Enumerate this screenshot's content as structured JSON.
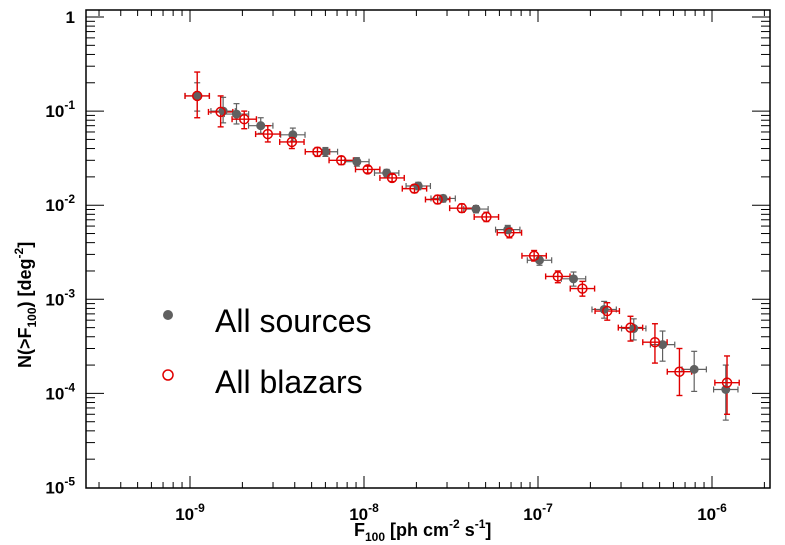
{
  "chart_data": {
    "type": "scatter",
    "title": "",
    "xlabel": {
      "base": "F",
      "sub": "100",
      "tail": " [ph cm",
      "sup1": "-2",
      "mid": " s",
      "sup2": "-1",
      "end": "]"
    },
    "ylabel": {
      "pre": "N(>F",
      "sub": "100",
      "mid": ") [deg",
      "sup": "-2",
      "end": "]"
    },
    "xscale": "log",
    "yscale": "log",
    "xlim": [
      2.5e-10,
      3e-06
    ],
    "ylim": [
      1e-05,
      1
    ],
    "x_ticks": [
      {
        "value": 1e-09,
        "base": "10",
        "exp": "-9"
      },
      {
        "value": 1e-08,
        "base": "10",
        "exp": "-8"
      },
      {
        "value": 1e-07,
        "base": "10",
        "exp": "-7"
      },
      {
        "value": 1e-06,
        "base": "10",
        "exp": "-6"
      }
    ],
    "y_ticks": [
      {
        "value": 1,
        "base": "1",
        "exp": ""
      },
      {
        "value": 0.1,
        "base": "10",
        "exp": "-1"
      },
      {
        "value": 0.01,
        "base": "10",
        "exp": "-2"
      },
      {
        "value": 0.001,
        "base": "10",
        "exp": "-3"
      },
      {
        "value": 0.0001,
        "base": "10",
        "exp": "-4"
      },
      {
        "value": 1e-05,
        "base": "10",
        "exp": "-5"
      }
    ],
    "grid": false,
    "legend_position": "left-center",
    "series": [
      {
        "name": "All sources",
        "marker": "filled-circle",
        "color": "#606060",
        "points": [
          [
            1.1e-09,
            0.145,
            0.2,
            0.1
          ],
          [
            1.55e-09,
            0.1,
            0.14,
            0.075
          ],
          [
            1.85e-09,
            0.093,
            0.12,
            0.073
          ],
          [
            2.55e-09,
            0.07,
            0.085,
            0.058
          ],
          [
            3.9e-09,
            0.056,
            0.066,
            0.048
          ],
          [
            6e-09,
            0.037,
            0.041,
            0.033
          ],
          [
            9.1e-09,
            0.029,
            0.032,
            0.026
          ],
          [
            1.35e-08,
            0.022,
            0.024,
            0.02
          ],
          [
            2.05e-08,
            0.016,
            0.0175,
            0.0146
          ],
          [
            2.85e-08,
            0.0118,
            0.0128,
            0.0108
          ],
          [
            4.4e-08,
            0.0091,
            0.0099,
            0.0083
          ],
          [
            6.7e-08,
            0.0055,
            0.0061,
            0.005
          ],
          [
            1.02e-07,
            0.0026,
            0.0029,
            0.0023
          ],
          [
            1.6e-07,
            0.00165,
            0.00195,
            0.00138
          ],
          [
            2.4e-07,
            0.00078,
            0.00095,
            0.00063
          ],
          [
            3.55e-07,
            0.00049,
            0.00062,
            0.00037
          ],
          [
            5.2e-07,
            0.00033,
            0.00046,
            0.00022
          ],
          [
            7.9e-07,
            0.00018,
            0.00028,
            0.000105
          ],
          [
            1.2e-06,
            0.00011,
            0.0002,
            5.2e-05
          ]
        ]
      },
      {
        "name": "All blazars",
        "marker": "open-circle",
        "color": "#e00000",
        "points": [
          [
            1.1e-09,
            0.145,
            0.26,
            0.085
          ],
          [
            1.5e-09,
            0.098,
            0.145,
            0.068
          ],
          [
            2.05e-09,
            0.082,
            0.1,
            0.065
          ],
          [
            2.8e-09,
            0.057,
            0.07,
            0.047
          ],
          [
            3.85e-09,
            0.047,
            0.056,
            0.04
          ],
          [
            5.4e-09,
            0.037,
            0.041,
            0.033
          ],
          [
            7.4e-09,
            0.03,
            0.033,
            0.027
          ],
          [
            1.05e-08,
            0.024,
            0.026,
            0.022
          ],
          [
            1.45e-08,
            0.0195,
            0.0213,
            0.0178
          ],
          [
            1.95e-08,
            0.015,
            0.0165,
            0.0136
          ],
          [
            2.65e-08,
            0.0115,
            0.0127,
            0.0104
          ],
          [
            3.65e-08,
            0.0093,
            0.0103,
            0.0084
          ],
          [
            5.05e-08,
            0.0075,
            0.0084,
            0.0067
          ],
          [
            6.85e-08,
            0.0051,
            0.0057,
            0.0045
          ],
          [
            9.5e-08,
            0.0029,
            0.0033,
            0.00255
          ],
          [
            1.3e-07,
            0.00175,
            0.002,
            0.0015
          ],
          [
            1.8e-07,
            0.0013,
            0.00155,
            0.00108
          ],
          [
            2.5e-07,
            0.00075,
            0.00092,
            0.0006
          ],
          [
            3.4e-07,
            0.0005,
            0.00066,
            0.00036
          ],
          [
            4.7e-07,
            0.00035,
            0.00055,
            0.00021
          ],
          [
            6.5e-07,
            0.00017,
            0.0003,
            9.5e-05
          ],
          [
            1.22e-06,
            0.00013,
            0.00025,
            6e-05
          ]
        ]
      }
    ]
  }
}
